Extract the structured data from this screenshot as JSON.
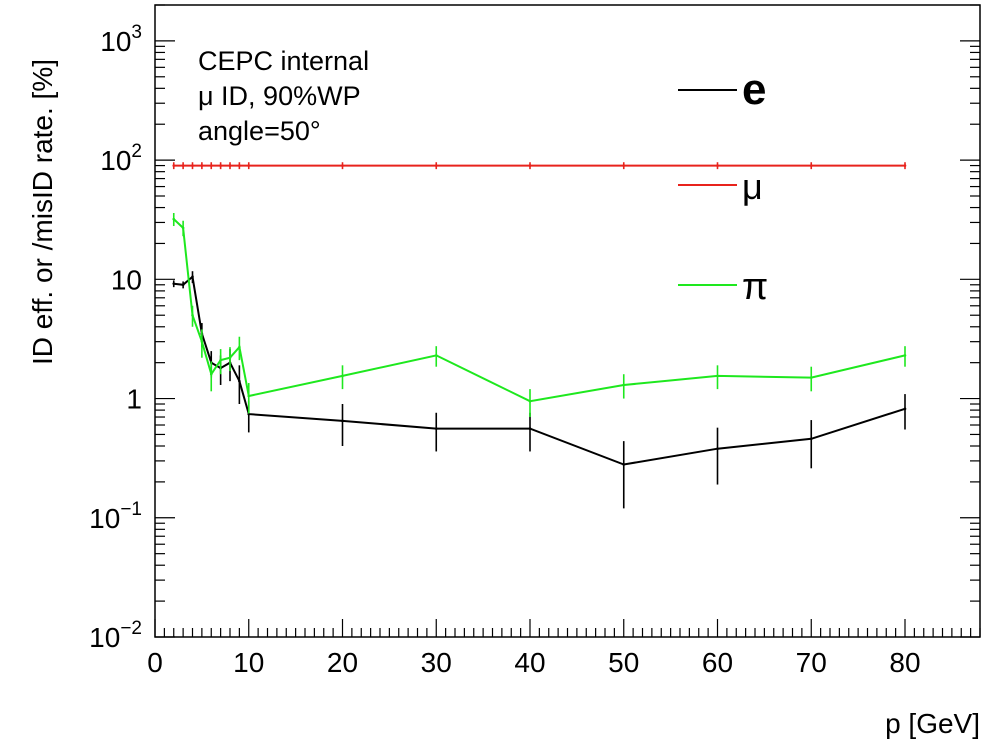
{
  "chart_data": {
    "type": "line",
    "xlabel": "p [GeV]",
    "ylabel": "ID eff. or /misID rate. [%]",
    "xlim": [
      0,
      88
    ],
    "ylim": [
      0.01,
      2000
    ],
    "yscale": "log",
    "x_ticks": [
      "0",
      "10",
      "20",
      "30",
      "40",
      "50",
      "60",
      "70",
      "80"
    ],
    "y_ticks": [
      {
        "base": "10",
        "exp": "3"
      },
      {
        "base": "10",
        "exp": "2"
      },
      {
        "base": "10",
        "exp": ""
      },
      {
        "base": "1",
        "exp": ""
      },
      {
        "base": "10",
        "exp": "−1"
      },
      {
        "base": "10",
        "exp": "−2"
      }
    ],
    "annotations": [
      "CEPC internal",
      "μ ID, 90%WP",
      "angle=50°"
    ],
    "legend_position": "top-right",
    "series": [
      {
        "name": "e",
        "color": "#000000",
        "x": [
          2,
          3,
          4,
          5,
          6,
          7,
          8,
          9,
          10,
          20,
          30,
          40,
          50,
          60,
          70,
          80
        ],
        "y": [
          9.2,
          9.0,
          10.5,
          3.5,
          2.0,
          1.8,
          2.0,
          1.4,
          0.74,
          0.65,
          0.56,
          0.56,
          0.28,
          0.38,
          0.46,
          0.82
        ],
        "err": [
          0.6,
          0.6,
          1.2,
          0.8,
          0.5,
          0.5,
          0.6,
          0.5,
          0.22,
          0.25,
          0.2,
          0.2,
          0.16,
          0.19,
          0.2,
          0.27
        ]
      },
      {
        "name": "μ",
        "color": "#e8231c",
        "x": [
          2,
          3,
          4,
          5,
          6,
          7,
          8,
          9,
          10,
          20,
          30,
          40,
          50,
          60,
          70,
          80
        ],
        "y": [
          90,
          90,
          90,
          90,
          90,
          90,
          90,
          90,
          90,
          90,
          90,
          90,
          90,
          90,
          90,
          90
        ],
        "err": [
          6,
          6,
          6,
          6,
          6,
          6,
          6,
          6,
          6,
          6,
          6,
          6,
          6,
          6,
          6,
          6
        ]
      },
      {
        "name": "π",
        "color": "#1ee81e",
        "x": [
          2,
          3,
          4,
          5,
          6,
          7,
          8,
          9,
          10,
          20,
          30,
          40,
          50,
          60,
          70,
          80
        ],
        "y": [
          32,
          27,
          5.0,
          3.0,
          1.6,
          2.1,
          2.2,
          2.7,
          1.05,
          1.55,
          2.3,
          0.95,
          1.3,
          1.55,
          1.5,
          2.3
        ],
        "err": [
          4,
          4,
          1.0,
          0.8,
          0.45,
          0.5,
          0.5,
          0.6,
          0.3,
          0.35,
          0.45,
          0.25,
          0.3,
          0.35,
          0.35,
          0.45
        ]
      }
    ]
  }
}
